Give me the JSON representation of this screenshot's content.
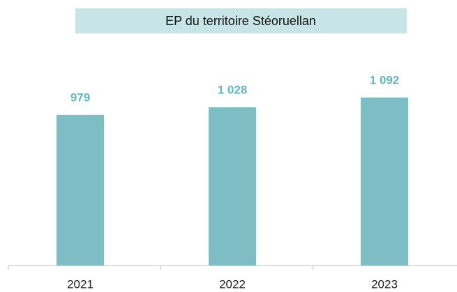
{
  "chart_data": {
    "type": "bar",
    "title": "EP du territoire Stéoruellan",
    "categories": [
      "2021",
      "2022",
      "2023"
    ],
    "values": [
      979,
      1028,
      1092
    ],
    "value_labels": [
      "979",
      "1 028",
      "1 092"
    ],
    "color": "#7fbdc5",
    "ylim": [
      0,
      1200
    ]
  }
}
